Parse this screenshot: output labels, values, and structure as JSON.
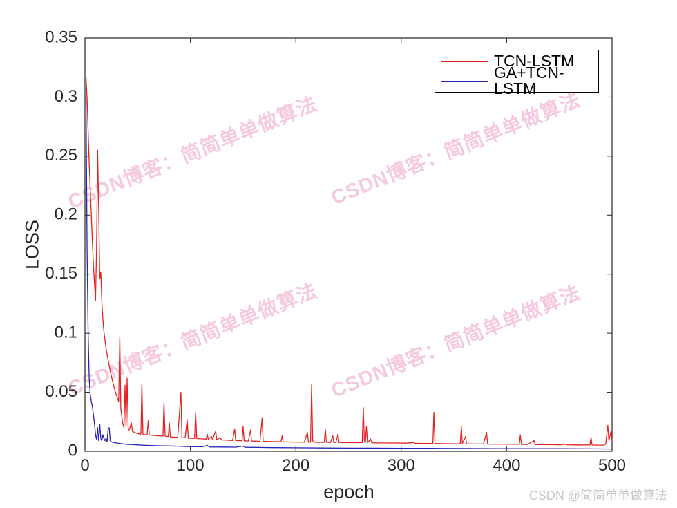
{
  "chart_data": {
    "type": "line",
    "title": "",
    "xlabel": "epoch",
    "ylabel": "LOSS",
    "xlim": [
      0,
      500
    ],
    "ylim": [
      0,
      0.35
    ],
    "xticks": [
      0,
      100,
      200,
      300,
      400,
      500
    ],
    "xtick_labels": [
      "0",
      "100",
      "200",
      "300",
      "400",
      "500"
    ],
    "yticks": [
      0,
      0.05,
      0.1,
      0.15,
      0.2,
      0.25,
      0.3,
      0.35
    ],
    "ytick_labels": [
      "0",
      "0.05",
      "0.1",
      "0.15",
      "0.2",
      "0.25",
      "0.3",
      "0.35"
    ],
    "grid": false,
    "legend_position": "top-right",
    "axis_color": "#262626",
    "series": [
      {
        "name": "TCN-LSTM",
        "color": "#e32222",
        "points": [
          [
            1,
            0.317
          ],
          [
            2,
            0.298
          ],
          [
            3,
            0.271
          ],
          [
            4,
            0.244
          ],
          [
            5,
            0.222
          ],
          [
            6,
            0.2
          ],
          [
            7,
            0.178
          ],
          [
            8,
            0.158
          ],
          [
            9,
            0.143
          ],
          [
            10,
            0.128
          ],
          [
            11,
            0.172
          ],
          [
            12,
            0.255
          ],
          [
            13,
            0.208
          ],
          [
            14,
            0.146
          ],
          [
            15,
            0.152
          ],
          [
            16,
            0.127
          ],
          [
            17,
            0.112
          ],
          [
            18,
            0.101
          ],
          [
            19,
            0.094
          ],
          [
            20,
            0.087
          ],
          [
            22,
            0.077
          ],
          [
            24,
            0.068
          ],
          [
            26,
            0.06
          ],
          [
            28,
            0.053
          ],
          [
            30,
            0.047
          ],
          [
            32,
            0.042
          ],
          [
            33,
            0.097
          ],
          [
            34,
            0.036
          ],
          [
            35,
            0.029
          ],
          [
            36,
            0.023
          ],
          [
            37,
            0.02
          ],
          [
            38,
            0.056
          ],
          [
            39,
            0.021
          ],
          [
            40,
            0.062
          ],
          [
            41,
            0.019
          ],
          [
            42,
            0.018
          ],
          [
            44,
            0.024
          ],
          [
            45,
            0.017
          ],
          [
            47,
            0.016
          ],
          [
            50,
            0.015
          ],
          [
            53,
            0.0145
          ],
          [
            54,
            0.057
          ],
          [
            55,
            0.0145
          ],
          [
            57,
            0.014
          ],
          [
            59,
            0.014
          ],
          [
            60,
            0.026
          ],
          [
            61,
            0.0138
          ],
          [
            64,
            0.0135
          ],
          [
            68,
            0.0132
          ],
          [
            72,
            0.013
          ],
          [
            74,
            0.013
          ],
          [
            75,
            0.041
          ],
          [
            76,
            0.0128
          ],
          [
            79,
            0.0125
          ],
          [
            80,
            0.024
          ],
          [
            81,
            0.0122
          ],
          [
            85,
            0.012
          ],
          [
            88,
            0.0118
          ],
          [
            91,
            0.05
          ],
          [
            92,
            0.0116
          ],
          [
            95,
            0.0114
          ],
          [
            97,
            0.027
          ],
          [
            98,
            0.0112
          ],
          [
            101,
            0.011
          ],
          [
            104,
            0.011
          ],
          [
            105,
            0.033
          ],
          [
            106,
            0.0108
          ],
          [
            110,
            0.0106
          ],
          [
            115,
            0.0104
          ],
          [
            116,
            0.0145
          ],
          [
            117,
            0.0102
          ],
          [
            120,
            0.0125
          ],
          [
            121,
            0.01
          ],
          [
            124,
            0.017
          ],
          [
            125,
            0.0098
          ],
          [
            128,
            0.0115
          ],
          [
            130,
            0.0096
          ],
          [
            135,
            0.0094
          ],
          [
            140,
            0.0092
          ],
          [
            142,
            0.019
          ],
          [
            143,
            0.0091
          ],
          [
            146,
            0.009
          ],
          [
            149,
            0.009
          ],
          [
            150,
            0.021
          ],
          [
            151,
            0.0089
          ],
          [
            155,
            0.0088
          ],
          [
            157,
            0.018
          ],
          [
            158,
            0.0087
          ],
          [
            162,
            0.0086
          ],
          [
            166,
            0.0085
          ],
          [
            168,
            0.028
          ],
          [
            169,
            0.0085
          ],
          [
            175,
            0.0083
          ],
          [
            181,
            0.0082
          ],
          [
            186,
            0.0081
          ],
          [
            187,
            0.013
          ],
          [
            188,
            0.008
          ],
          [
            195,
            0.0079
          ],
          [
            202,
            0.0078
          ],
          [
            208,
            0.0078
          ],
          [
            211,
            0.016
          ],
          [
            212,
            0.0077
          ],
          [
            214,
            0.0077
          ],
          [
            215,
            0.057
          ],
          [
            216,
            0.009
          ],
          [
            217,
            0.0077
          ],
          [
            222,
            0.0076
          ],
          [
            227,
            0.0076
          ],
          [
            228,
            0.019
          ],
          [
            229,
            0.0076
          ],
          [
            233,
            0.0075
          ],
          [
            235,
            0.0135
          ],
          [
            236,
            0.0075
          ],
          [
            238,
            0.0075
          ],
          [
            240,
            0.0145
          ],
          [
            241,
            0.0074
          ],
          [
            247,
            0.0074
          ],
          [
            253,
            0.0073
          ],
          [
            259,
            0.0073
          ],
          [
            263,
            0.0073
          ],
          [
            264,
            0.037
          ],
          [
            265,
            0.009
          ],
          [
            266,
            0.0073
          ],
          [
            267,
            0.021
          ],
          [
            268,
            0.0072
          ],
          [
            271,
            0.0105
          ],
          [
            272,
            0.0072
          ],
          [
            280,
            0.0071
          ],
          [
            288,
            0.007
          ],
          [
            296,
            0.007
          ],
          [
            305,
            0.0069
          ],
          [
            312,
            0.0075
          ],
          [
            313,
            0.0068
          ],
          [
            320,
            0.0067
          ],
          [
            326,
            0.0067
          ],
          [
            330,
            0.0067
          ],
          [
            331,
            0.033
          ],
          [
            332,
            0.0066
          ],
          [
            340,
            0.0065
          ],
          [
            348,
            0.0064
          ],
          [
            356,
            0.0064
          ],
          [
            357,
            0.021
          ],
          [
            358,
            0.0066
          ],
          [
            361,
            0.0125
          ],
          [
            362,
            0.0063
          ],
          [
            370,
            0.0062
          ],
          [
            378,
            0.0062
          ],
          [
            381,
            0.016
          ],
          [
            382,
            0.0061
          ],
          [
            390,
            0.006
          ],
          [
            398,
            0.006
          ],
          [
            406,
            0.0059
          ],
          [
            412,
            0.0059
          ],
          [
            413,
            0.014
          ],
          [
            414,
            0.0058
          ],
          [
            420,
            0.0058
          ],
          [
            426,
            0.009
          ],
          [
            427,
            0.0057
          ],
          [
            435,
            0.0056
          ],
          [
            443,
            0.0056
          ],
          [
            450,
            0.0055
          ],
          [
            456,
            0.006
          ],
          [
            457,
            0.0055
          ],
          [
            465,
            0.0054
          ],
          [
            472,
            0.0054
          ],
          [
            479,
            0.0053
          ],
          [
            480,
            0.012
          ],
          [
            481,
            0.0053
          ],
          [
            487,
            0.0052
          ],
          [
            492,
            0.0052
          ],
          [
            494,
            0.006
          ],
          [
            496,
            0.022
          ],
          [
            497,
            0.009
          ],
          [
            499,
            0.017
          ],
          [
            500,
            0.008
          ]
        ]
      },
      {
        "name": "GA+TCN-LSTM",
        "color": "#2323b4",
        "points": [
          [
            1,
            0.3
          ],
          [
            2,
            0.17
          ],
          [
            3,
            0.1
          ],
          [
            4,
            0.062
          ],
          [
            5,
            0.048
          ],
          [
            6,
            0.042
          ],
          [
            7,
            0.038
          ],
          [
            8,
            0.031
          ],
          [
            9,
            0.024
          ],
          [
            10,
            0.014
          ],
          [
            11,
            0.01
          ],
          [
            12,
            0.02
          ],
          [
            13,
            0.009
          ],
          [
            14,
            0.023
          ],
          [
            15,
            0.011
          ],
          [
            16,
            0.009
          ],
          [
            17,
            0.014
          ],
          [
            18,
            0.011
          ],
          [
            19,
            0.009
          ],
          [
            20,
            0.011
          ],
          [
            21,
            0.008
          ],
          [
            22,
            0.019
          ],
          [
            23,
            0.02
          ],
          [
            24,
            0.009
          ],
          [
            25,
            0.008
          ],
          [
            27,
            0.0075
          ],
          [
            30,
            0.007
          ],
          [
            34,
            0.0065
          ],
          [
            38,
            0.006
          ],
          [
            42,
            0.0058
          ],
          [
            46,
            0.0056
          ],
          [
            50,
            0.0054
          ],
          [
            55,
            0.0052
          ],
          [
            60,
            0.005
          ],
          [
            70,
            0.0047
          ],
          [
            80,
            0.0045
          ],
          [
            90,
            0.0043
          ],
          [
            100,
            0.004
          ],
          [
            112,
            0.0039
          ],
          [
            116,
            0.005
          ],
          [
            118,
            0.0037
          ],
          [
            130,
            0.0036
          ],
          [
            143,
            0.0035
          ],
          [
            150,
            0.0044
          ],
          [
            152,
            0.0034
          ],
          [
            165,
            0.0033
          ],
          [
            180,
            0.0031
          ],
          [
            200,
            0.003
          ],
          [
            225,
            0.0028
          ],
          [
            250,
            0.0027
          ],
          [
            275,
            0.0027
          ],
          [
            300,
            0.0026
          ],
          [
            330,
            0.0025
          ],
          [
            360,
            0.0024
          ],
          [
            390,
            0.0023
          ],
          [
            420,
            0.0022
          ],
          [
            450,
            0.0022
          ],
          [
            480,
            0.0021
          ],
          [
            500,
            0.002
          ]
        ]
      }
    ]
  },
  "watermark": {
    "text": "CSDN博客：简简单单做算法",
    "color": "#e87bb0"
  },
  "credit": {
    "text": "CSDN @简简单单做算法",
    "color": "#c9c9c9"
  }
}
